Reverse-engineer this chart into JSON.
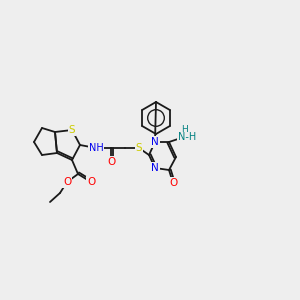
{
  "bg_color": "#eeeeee",
  "bond_color": "#1a1a1a",
  "atom_colors": {
    "O": "#ff0000",
    "N": "#0000ee",
    "S": "#cccc00",
    "NH": "#008080",
    "C": "#1a1a1a"
  },
  "lw": 1.3
}
